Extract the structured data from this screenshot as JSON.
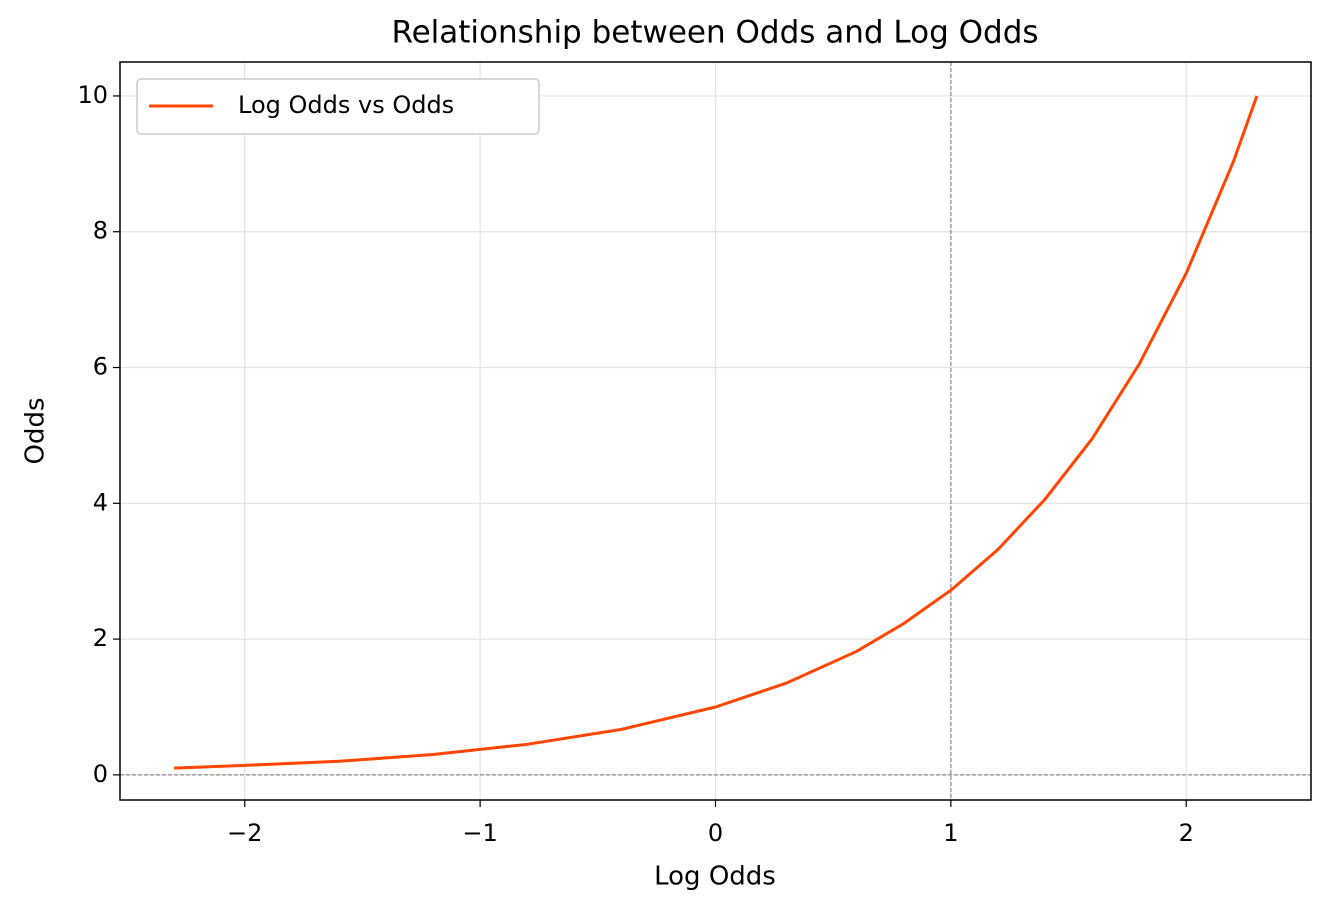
{
  "chart_data": {
    "type": "line",
    "title": "Relationship between Odds and Log Odds",
    "xlabel": "Log Odds",
    "ylabel": "Odds",
    "x": [
      -2.3,
      -2.0,
      -1.6,
      -1.2,
      -0.8,
      -0.4,
      0,
      0.3,
      0.6,
      0.8,
      1.0,
      1.2,
      1.4,
      1.6,
      1.8,
      2.0,
      2.2,
      2.3
    ],
    "series": [
      {
        "name": "Log Odds vs Odds",
        "color": "#ff4500",
        "values": [
          0.1,
          0.14,
          0.2,
          0.3,
          0.45,
          0.67,
          1.0,
          1.35,
          1.82,
          2.23,
          2.72,
          3.32,
          4.06,
          4.95,
          6.05,
          7.39,
          9.03,
          10
        ]
      }
    ],
    "xlim": [
      -2.53,
      2.53
    ],
    "ylim": [
      -0.37,
      10.5
    ],
    "xticks": [
      {
        "value": -2,
        "label": "−2"
      },
      {
        "value": -1,
        "label": "−1"
      },
      0,
      1,
      2
    ],
    "yticks": [
      0,
      2,
      4,
      6,
      8,
      10
    ],
    "reference_lines": {
      "y": 0,
      "x": 1
    },
    "grid": true,
    "legend": "upper-left"
  }
}
